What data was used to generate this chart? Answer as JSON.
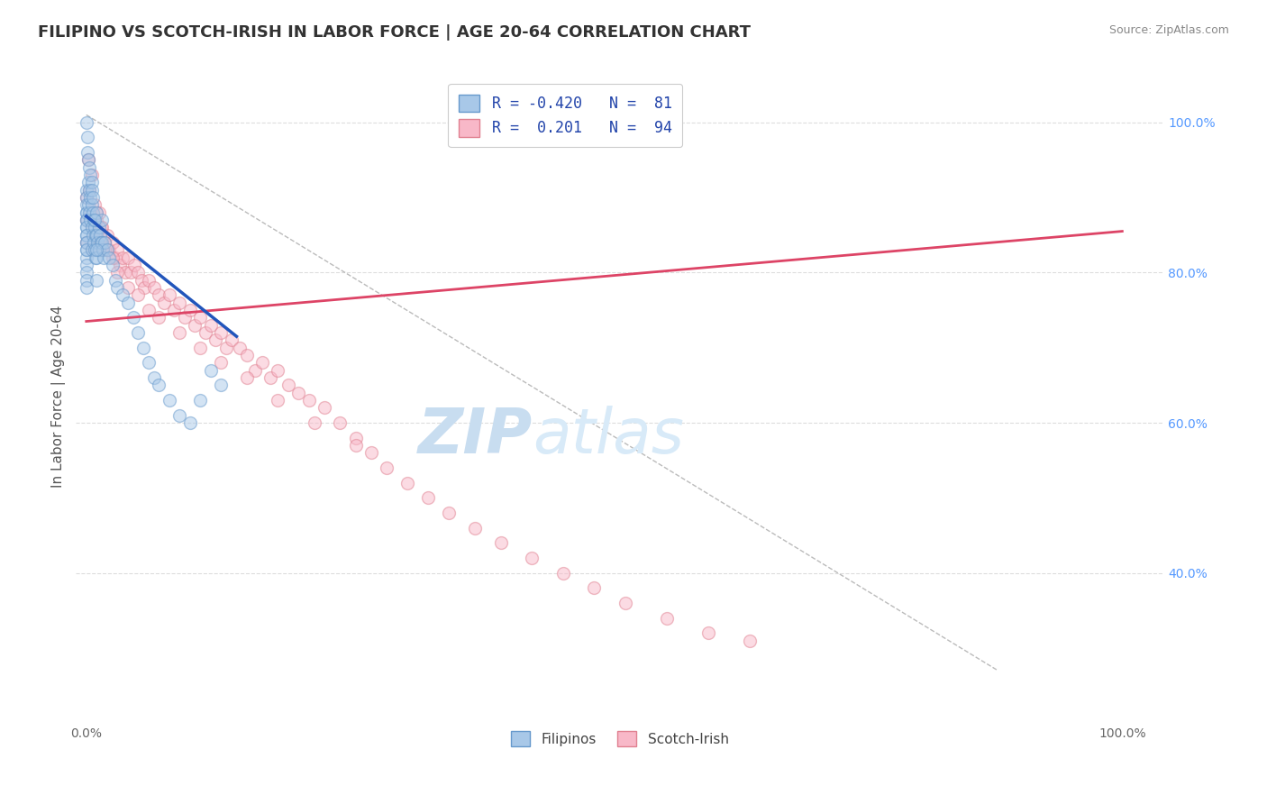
{
  "title": "FILIPINO VS SCOTCH-IRISH IN LABOR FORCE | AGE 20-64 CORRELATION CHART",
  "source": "Source: ZipAtlas.com",
  "ylabel": "In Labor Force | Age 20-64",
  "right_ytick_labels": [
    "40.0%",
    "60.0%",
    "80.0%",
    "100.0%"
  ],
  "right_ytick_values": [
    0.4,
    0.6,
    0.8,
    1.0
  ],
  "xlim": [
    -0.01,
    1.04
  ],
  "ylim": [
    0.2,
    1.07
  ],
  "blue_color": "#a8c8e8",
  "pink_color": "#f8b8c8",
  "blue_edge": "#6699cc",
  "pink_edge": "#e08090",
  "trend_blue": "#2255bb",
  "trend_pink": "#dd4466",
  "diag_color": "#bbbbbb",
  "title_color": "#333333",
  "source_color": "#888888",
  "background_color": "#ffffff",
  "grid_color": "#dddddd",
  "title_fontsize": 13,
  "axis_label_fontsize": 11,
  "tick_fontsize": 10,
  "legend_fontsize": 12,
  "watermark_fontsize": 50,
  "scatter_size": 100,
  "scatter_alpha": 0.5,
  "scatter_linewidth": 1.0,
  "filipinos_x": [
    0.0,
    0.0,
    0.0,
    0.0,
    0.0,
    0.0,
    0.0,
    0.0,
    0.0,
    0.0,
    0.0,
    0.0,
    0.0,
    0.0,
    0.0,
    0.0,
    0.0,
    0.0,
    0.0,
    0.0,
    0.002,
    0.002,
    0.003,
    0.003,
    0.004,
    0.004,
    0.005,
    0.005,
    0.005,
    0.006,
    0.006,
    0.007,
    0.007,
    0.008,
    0.008,
    0.009,
    0.009,
    0.01,
    0.01,
    0.01,
    0.01,
    0.011,
    0.012,
    0.012,
    0.013,
    0.014,
    0.015,
    0.015,
    0.016,
    0.017,
    0.018,
    0.02,
    0.022,
    0.025,
    0.028,
    0.03,
    0.035,
    0.04,
    0.045,
    0.05,
    0.055,
    0.06,
    0.065,
    0.07,
    0.08,
    0.09,
    0.1,
    0.11,
    0.12,
    0.13,
    0.0,
    0.001,
    0.001,
    0.002,
    0.003,
    0.004,
    0.005,
    0.005,
    0.006,
    0.008,
    0.01
  ],
  "filipinos_y": [
    0.88,
    0.87,
    0.86,
    0.85,
    0.84,
    0.83,
    0.82,
    0.81,
    0.8,
    0.79,
    0.91,
    0.9,
    0.89,
    0.88,
    0.87,
    0.86,
    0.85,
    0.84,
    0.83,
    0.78,
    0.92,
    0.89,
    0.91,
    0.88,
    0.9,
    0.87,
    0.89,
    0.86,
    0.83,
    0.88,
    0.85,
    0.87,
    0.84,
    0.86,
    0.83,
    0.85,
    0.82,
    0.88,
    0.85,
    0.82,
    0.79,
    0.84,
    0.86,
    0.83,
    0.85,
    0.84,
    0.87,
    0.84,
    0.83,
    0.82,
    0.84,
    0.83,
    0.82,
    0.81,
    0.79,
    0.78,
    0.77,
    0.76,
    0.74,
    0.72,
    0.7,
    0.68,
    0.66,
    0.65,
    0.63,
    0.61,
    0.6,
    0.63,
    0.67,
    0.65,
    1.0,
    0.98,
    0.96,
    0.95,
    0.94,
    0.93,
    0.92,
    0.91,
    0.9,
    0.87,
    0.83
  ],
  "scotchirish_x": [
    0.0,
    0.0,
    0.0,
    0.002,
    0.003,
    0.004,
    0.005,
    0.006,
    0.007,
    0.008,
    0.01,
    0.01,
    0.012,
    0.014,
    0.015,
    0.016,
    0.018,
    0.02,
    0.022,
    0.025,
    0.028,
    0.03,
    0.032,
    0.035,
    0.038,
    0.04,
    0.043,
    0.046,
    0.05,
    0.053,
    0.056,
    0.06,
    0.065,
    0.07,
    0.075,
    0.08,
    0.085,
    0.09,
    0.095,
    0.1,
    0.105,
    0.11,
    0.115,
    0.12,
    0.125,
    0.13,
    0.135,
    0.14,
    0.148,
    0.155,
    0.163,
    0.17,
    0.178,
    0.185,
    0.195,
    0.205,
    0.215,
    0.23,
    0.245,
    0.26,
    0.275,
    0.29,
    0.31,
    0.33,
    0.35,
    0.375,
    0.4,
    0.43,
    0.46,
    0.49,
    0.52,
    0.56,
    0.6,
    0.64,
    0.005,
    0.008,
    0.01,
    0.012,
    0.015,
    0.018,
    0.02,
    0.025,
    0.03,
    0.04,
    0.05,
    0.06,
    0.07,
    0.09,
    0.11,
    0.13,
    0.155,
    0.185,
    0.22,
    0.26
  ],
  "scotchirish_y": [
    0.9,
    0.87,
    0.84,
    0.95,
    0.91,
    0.88,
    0.86,
    0.83,
    0.87,
    0.85,
    0.88,
    0.85,
    0.84,
    0.86,
    0.83,
    0.85,
    0.83,
    0.85,
    0.83,
    0.84,
    0.82,
    0.83,
    0.81,
    0.82,
    0.8,
    0.82,
    0.8,
    0.81,
    0.8,
    0.79,
    0.78,
    0.79,
    0.78,
    0.77,
    0.76,
    0.77,
    0.75,
    0.76,
    0.74,
    0.75,
    0.73,
    0.74,
    0.72,
    0.73,
    0.71,
    0.72,
    0.7,
    0.71,
    0.7,
    0.69,
    0.67,
    0.68,
    0.66,
    0.67,
    0.65,
    0.64,
    0.63,
    0.62,
    0.6,
    0.58,
    0.56,
    0.54,
    0.52,
    0.5,
    0.48,
    0.46,
    0.44,
    0.42,
    0.4,
    0.38,
    0.36,
    0.34,
    0.32,
    0.31,
    0.93,
    0.89,
    0.87,
    0.88,
    0.86,
    0.84,
    0.83,
    0.82,
    0.8,
    0.78,
    0.77,
    0.75,
    0.74,
    0.72,
    0.7,
    0.68,
    0.66,
    0.63,
    0.6,
    0.57
  ],
  "blue_trend_x": [
    0.0,
    0.145
  ],
  "blue_trend_y": [
    0.875,
    0.715
  ],
  "pink_trend_x": [
    0.0,
    1.0
  ],
  "pink_trend_y": [
    0.735,
    0.855
  ],
  "diag_trend_x": [
    0.0,
    0.88
  ],
  "diag_trend_y": [
    1.01,
    0.27
  ],
  "legend_label_blue": "R = -0.420   N =  81",
  "legend_label_pink": "R =  0.201   N =  94",
  "legend_r_blue": "-0.420",
  "legend_r_pink": "0.201",
  "legend_n_blue": "81",
  "legend_n_pink": "94"
}
